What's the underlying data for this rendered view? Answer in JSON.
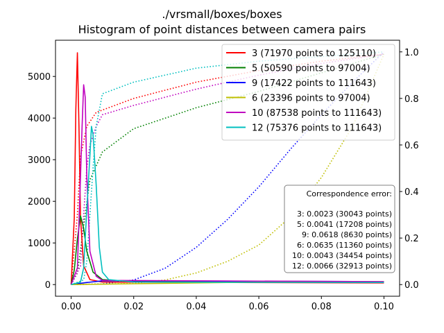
{
  "figure": {
    "title_line1": "./vrsmall/boxes/boxes",
    "title_line2": "Histogram of point distances between camera pairs"
  },
  "chart_data": {
    "type": "line",
    "title": "./vrsmall/boxes/boxes\nHistogram of point distances between camera pairs",
    "xlabel": "",
    "ylabel": "",
    "xlim": [
      -0.005,
      0.105
    ],
    "ylim": [
      -280,
      5870
    ],
    "y2lim": [
      -0.05,
      1.05
    ],
    "grid": false,
    "legend_placement": "top-right",
    "x_ticks": [
      "0.00",
      "0.02",
      "0.04",
      "0.06",
      "0.08",
      "0.10"
    ],
    "y_ticks": [
      "0",
      "1000",
      "2000",
      "3000",
      "4000",
      "5000"
    ],
    "y2_ticks": [
      "0.0",
      "0.2",
      "0.4",
      "0.6",
      "0.8",
      "1.0"
    ],
    "series": [
      {
        "name": "3 (71970 points to 125110)",
        "color": "#ff0000",
        "histogram": [
          [
            0,
            0
          ],
          [
            0.001,
            1600
          ],
          [
            0.0015,
            4200
          ],
          [
            0.002,
            5570
          ],
          [
            0.0025,
            3800
          ],
          [
            0.003,
            1600
          ],
          [
            0.004,
            450
          ],
          [
            0.006,
            120
          ],
          [
            0.01,
            60
          ],
          [
            0.1,
            40
          ]
        ],
        "cumulative": [
          [
            0,
            0
          ],
          [
            0.002,
            0.3
          ],
          [
            0.003,
            0.55
          ],
          [
            0.005,
            0.68
          ],
          [
            0.008,
            0.74
          ],
          [
            0.02,
            0.8
          ],
          [
            0.04,
            0.87
          ],
          [
            0.06,
            0.92
          ],
          [
            0.08,
            0.96
          ],
          [
            0.1,
            0.99
          ]
        ]
      },
      {
        "name": "5 (50590 points to 97004)",
        "color": "#008000",
        "histogram": [
          [
            0,
            0
          ],
          [
            0.001,
            350
          ],
          [
            0.002,
            1100
          ],
          [
            0.003,
            1650
          ],
          [
            0.004,
            1350
          ],
          [
            0.005,
            800
          ],
          [
            0.007,
            300
          ],
          [
            0.01,
            120
          ],
          [
            0.02,
            70
          ],
          [
            0.1,
            50
          ]
        ],
        "cumulative": [
          [
            0,
            0
          ],
          [
            0.002,
            0.05
          ],
          [
            0.004,
            0.25
          ],
          [
            0.006,
            0.45
          ],
          [
            0.01,
            0.57
          ],
          [
            0.02,
            0.67
          ],
          [
            0.04,
            0.76
          ],
          [
            0.06,
            0.83
          ],
          [
            0.08,
            0.91
          ],
          [
            0.1,
            0.99
          ]
        ]
      },
      {
        "name": "9 (17422 points to 111643)",
        "color": "#0000ff",
        "histogram": [
          [
            0,
            0
          ],
          [
            0.002,
            20
          ],
          [
            0.005,
            50
          ],
          [
            0.01,
            90
          ],
          [
            0.02,
            90
          ],
          [
            0.1,
            70
          ]
        ],
        "cumulative": [
          [
            0,
            0
          ],
          [
            0.01,
            0.003
          ],
          [
            0.02,
            0.02
          ],
          [
            0.03,
            0.07
          ],
          [
            0.04,
            0.16
          ],
          [
            0.05,
            0.28
          ],
          [
            0.06,
            0.42
          ],
          [
            0.07,
            0.58
          ],
          [
            0.08,
            0.73
          ],
          [
            0.09,
            0.87
          ],
          [
            0.1,
            1.0
          ]
        ]
      },
      {
        "name": "6 (23396 points to 97004)",
        "color": "#bfbf00",
        "histogram": [
          [
            0,
            0
          ],
          [
            0.01,
            10
          ],
          [
            0.02,
            20
          ],
          [
            0.04,
            40
          ],
          [
            0.06,
            60
          ],
          [
            0.08,
            70
          ],
          [
            0.1,
            70
          ]
        ],
        "cumulative": [
          [
            0,
            0
          ],
          [
            0.02,
            0.005
          ],
          [
            0.03,
            0.02
          ],
          [
            0.04,
            0.05
          ],
          [
            0.05,
            0.1
          ],
          [
            0.06,
            0.17
          ],
          [
            0.07,
            0.29
          ],
          [
            0.08,
            0.46
          ],
          [
            0.09,
            0.68
          ],
          [
            0.1,
            0.99
          ]
        ]
      },
      {
        "name": "10 (87538 points to 111643)",
        "color": "#bf00bf",
        "histogram": [
          [
            0,
            0
          ],
          [
            0.002,
            400
          ],
          [
            0.003,
            2600
          ],
          [
            0.0035,
            3800
          ],
          [
            0.004,
            4800
          ],
          [
            0.0045,
            4500
          ],
          [
            0.005,
            2600
          ],
          [
            0.006,
            800
          ],
          [
            0.008,
            200
          ],
          [
            0.01,
            100
          ],
          [
            0.1,
            70
          ]
        ],
        "cumulative": [
          [
            0,
            0
          ],
          [
            0.003,
            0.08
          ],
          [
            0.004,
            0.3
          ],
          [
            0.005,
            0.5
          ],
          [
            0.006,
            0.6
          ],
          [
            0.008,
            0.68
          ],
          [
            0.01,
            0.73
          ],
          [
            0.02,
            0.77
          ],
          [
            0.04,
            0.84
          ],
          [
            0.06,
            0.9
          ],
          [
            0.08,
            0.95
          ],
          [
            0.1,
            0.99
          ]
        ]
      },
      {
        "name": "12 (75376 points to 111643)",
        "color": "#00bfbf",
        "histogram": [
          [
            0,
            0
          ],
          [
            0.003,
            60
          ],
          [
            0.004,
            400
          ],
          [
            0.005,
            1800
          ],
          [
            0.006,
            3100
          ],
          [
            0.0065,
            3800
          ],
          [
            0.007,
            3600
          ],
          [
            0.008,
            2400
          ],
          [
            0.009,
            900
          ],
          [
            0.01,
            300
          ],
          [
            0.012,
            120
          ],
          [
            0.02,
            60
          ],
          [
            0.1,
            50
          ]
        ],
        "cumulative": [
          [
            0,
            0
          ],
          [
            0.004,
            0.02
          ],
          [
            0.005,
            0.1
          ],
          [
            0.006,
            0.3
          ],
          [
            0.007,
            0.5
          ],
          [
            0.008,
            0.68
          ],
          [
            0.01,
            0.82
          ],
          [
            0.02,
            0.87
          ],
          [
            0.04,
            0.93
          ],
          [
            0.06,
            0.96
          ],
          [
            0.08,
            0.98
          ],
          [
            0.1,
            1.0
          ]
        ]
      }
    ],
    "error_box": {
      "title": "Correspondence error:",
      "lines": [
        "3: 0.0023 (30043 points)",
        "5: 0.0041 (17208 points)",
        "9: 0.0618 (8630 points)",
        "6: 0.0635 (11360 points)",
        "10: 0.0043 (34454 points)",
        "12: 0.0066 (32913 points)"
      ]
    }
  }
}
